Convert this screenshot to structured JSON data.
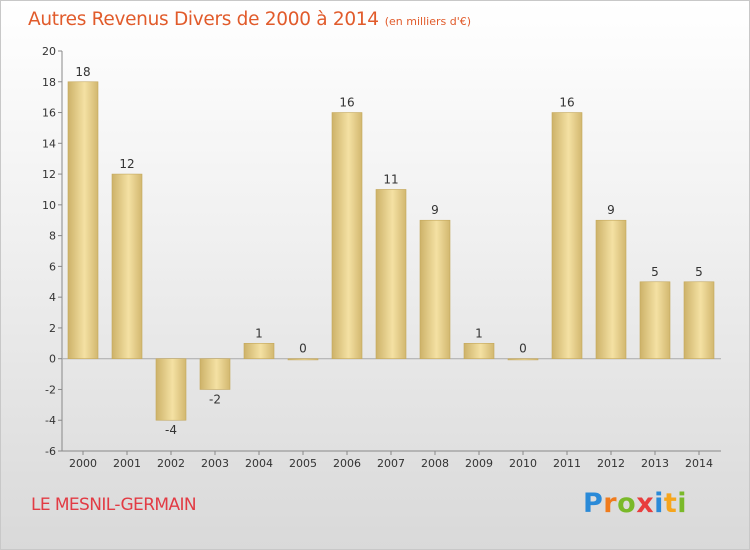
{
  "header": {
    "title": "Autres Revenus Divers de 2000 à 2014",
    "subtitle": "(en milliers d'€)"
  },
  "footer": {
    "place": "LE MESNIL-GERMAIN",
    "logo": "Proxiti"
  },
  "colors": {
    "title": "#e15b2b",
    "place": "#e23b44",
    "bar_light": "#f6e3a6",
    "bar_dark": "#cdb269",
    "bar_border": "#c4a85c"
  },
  "chart_data": {
    "type": "bar",
    "categories": [
      "2000",
      "2001",
      "2002",
      "2003",
      "2004",
      "2005",
      "2006",
      "2007",
      "2008",
      "2009",
      "2010",
      "2011",
      "2012",
      "2013",
      "2014"
    ],
    "values": [
      18,
      12,
      -4,
      -2,
      1,
      0,
      16,
      11,
      9,
      1,
      0,
      16,
      9,
      5,
      5
    ],
    "value_labels": [
      "18",
      "12",
      "-4",
      "-2",
      "1",
      "0",
      "16",
      "11",
      "9",
      "1",
      "0",
      "16",
      "9",
      "5",
      "5"
    ],
    "title": "Autres Revenus Divers de 2000 à 2014",
    "xlabel": "",
    "ylabel": "",
    "ylim": [
      -6,
      20
    ],
    "yticks": [
      -6,
      -4,
      -2,
      0,
      2,
      4,
      6,
      8,
      10,
      12,
      14,
      16,
      18,
      20
    ],
    "grid": false,
    "legend": "none"
  }
}
